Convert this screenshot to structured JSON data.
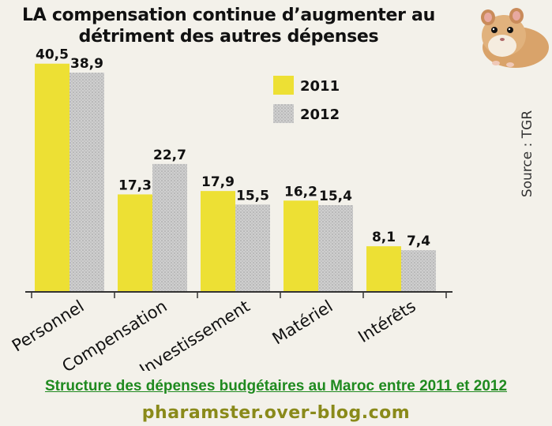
{
  "title": {
    "line1": "LA compensation continue d’augmenter au",
    "line2": "détriment des autres dépenses"
  },
  "source": "Source : TGR",
  "caption": "Structure des dépenses budgétaires au Maroc entre 2011 et 2012",
  "watermark": "pharamster.over-blog.com",
  "colors": {
    "series_2011": "#ede034",
    "series_2012": "#c9c9c9",
    "caption": "#1f8a1f",
    "watermark": "#8a8a1a"
  },
  "chart_data": {
    "type": "bar",
    "title": "LA compensation continue d’augmenter au détriment des autres dépenses",
    "categories": [
      "Personnel",
      "Compensation",
      "Investissement",
      "Matériel",
      "Intérêts"
    ],
    "series": [
      {
        "name": "2011",
        "values": [
          40.5,
          17.3,
          17.9,
          16.2,
          8.1
        ],
        "labels": [
          "40,5",
          "17,3",
          "17,9",
          "16,2",
          "8,1"
        ]
      },
      {
        "name": "2012",
        "values": [
          38.9,
          22.7,
          15.5,
          15.4,
          7.4
        ],
        "labels": [
          "38,9",
          "22,7",
          "15,5",
          "15,4",
          "7,4"
        ]
      }
    ],
    "xlabel": "",
    "ylabel": "",
    "ylim": [
      0,
      42
    ],
    "grid": false,
    "legend": "top-right"
  }
}
